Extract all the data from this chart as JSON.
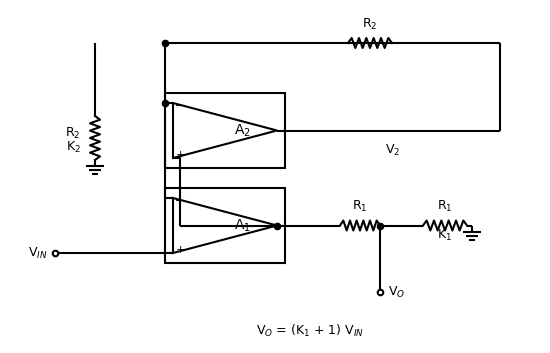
{
  "bg_color": "#ffffff",
  "line_color": "#000000",
  "line_width": 1.5,
  "formula": "V$_O$ = (K$_1$ + 1) V$_{IN}$",
  "label_A1": "A$_1$",
  "label_A2": "A$_2$",
  "label_R1_horiz": "R$_1$",
  "label_R2_top": "R$_2$",
  "label_R2_left_a": "R$_2$",
  "label_R2_left_b": "K$_2$",
  "label_R1_right_a": "R$_1$",
  "label_R1_right_b": "K$_1$",
  "label_V2": "V$_2$",
  "label_VO": "V$_O$",
  "label_VIN": "V$_{IN}$"
}
